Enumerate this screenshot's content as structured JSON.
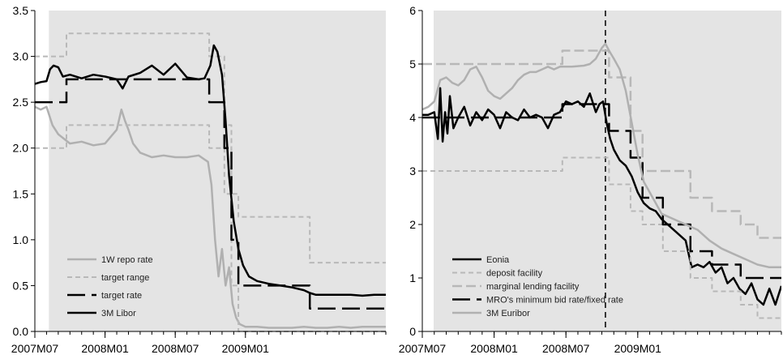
{
  "chart_data": [
    {
      "type": "line",
      "title": "",
      "xlabel": "",
      "ylabel": "",
      "xlim": [
        0,
        30
      ],
      "ylim": [
        0,
        3.5
      ],
      "x_ticks": [
        {
          "label": "2007M07",
          "x": 0
        },
        {
          "label": "2008M01",
          "x": 6
        },
        {
          "label": "2008M07",
          "x": 12
        },
        {
          "label": "2009M01",
          "x": 18
        }
      ],
      "y_ticks": [
        "0.0",
        "0.5",
        "1.0",
        "1.5",
        "2.0",
        "2.5",
        "3.0",
        "3.5"
      ],
      "y_tick_values": [
        0,
        0.5,
        1.0,
        1.5,
        2.0,
        2.5,
        3.0,
        3.5
      ],
      "shaded_region": {
        "x_start": 1.2,
        "x_end": 30,
        "color": "#e4e4e4"
      },
      "legend": {
        "placement": "bottom-left"
      },
      "series": [
        {
          "name": "1W repo rate",
          "color": "#b0b0b0",
          "dash": "solid",
          "width": 2.5,
          "x": [
            0,
            0.5,
            1,
            1.5,
            2,
            2.5,
            3,
            4,
            5,
            6,
            7,
            7.4,
            7.7,
            8,
            8.4,
            9,
            10,
            11,
            12,
            13,
            14,
            14.8,
            15.1,
            15.4,
            15.7,
            16,
            16.3,
            16.6,
            16.9,
            17.2,
            17.5,
            18,
            19,
            20,
            21,
            22,
            23,
            24,
            25,
            26,
            27,
            28,
            29,
            30
          ],
          "y": [
            2.45,
            2.42,
            2.45,
            2.25,
            2.15,
            2.1,
            2.05,
            2.07,
            2.03,
            2.05,
            2.2,
            2.42,
            2.3,
            2.2,
            2.05,
            1.95,
            1.9,
            1.92,
            1.9,
            1.9,
            1.92,
            1.85,
            1.6,
            1.0,
            0.6,
            0.9,
            0.5,
            0.7,
            0.3,
            0.15,
            0.08,
            0.05,
            0.05,
            0.04,
            0.04,
            0.04,
            0.05,
            0.04,
            0.04,
            0.05,
            0.04,
            0.05,
            0.05,
            0.05
          ]
        },
        {
          "name": "target range",
          "color": "#b8b8b8",
          "dash": "short",
          "width": 2,
          "steps": true,
          "x": [
            0,
            2.7,
            14.9,
            16.2,
            16.8,
            17.4,
            23.5,
            26.8,
            30
          ],
          "y": [
            3.0,
            3.25,
            3.0,
            2.25,
            1.5,
            1.25,
            0.75,
            0.75,
            0.75
          ]
        },
        {
          "name": "",
          "color": "#b8b8b8",
          "dash": "short",
          "width": 2,
          "steps": true,
          "x": [
            0,
            2.7,
            14.9,
            16.2,
            16.8,
            17.4,
            30
          ],
          "y": [
            2.0,
            2.25,
            2.0,
            1.5,
            0.5,
            0.0,
            0.0
          ]
        },
        {
          "name": "target rate",
          "color": "#000000",
          "dash": "long",
          "width": 2.5,
          "steps": true,
          "x": [
            0,
            1.2,
            2.7,
            14.9,
            16.2,
            16.8,
            17.4,
            23.5,
            30
          ],
          "y": [
            2.5,
            2.5,
            2.75,
            2.5,
            2.0,
            1.0,
            0.5,
            0.25,
            0.25
          ]
        },
        {
          "name": "3M Libor",
          "color": "#000000",
          "dash": "solid",
          "width": 2.5,
          "x": [
            0,
            0.5,
            1,
            1.3,
            1.6,
            2,
            2.4,
            3,
            4,
            5,
            6,
            7,
            7.5,
            8,
            9,
            10,
            10.5,
            11,
            12,
            13,
            14,
            14.5,
            15,
            15.3,
            15.6,
            16,
            16.3,
            16.6,
            17,
            17.4,
            17.8,
            18.3,
            19,
            20,
            21,
            22,
            23,
            23.5,
            24,
            25,
            26,
            27,
            28,
            29,
            30
          ],
          "y": [
            2.7,
            2.72,
            2.73,
            2.86,
            2.9,
            2.88,
            2.78,
            2.8,
            2.76,
            2.8,
            2.78,
            2.75,
            2.65,
            2.78,
            2.82,
            2.9,
            2.85,
            2.8,
            2.92,
            2.77,
            2.75,
            2.76,
            2.9,
            3.12,
            3.05,
            2.8,
            2.3,
            1.7,
            1.2,
            0.9,
            0.72,
            0.6,
            0.55,
            0.52,
            0.5,
            0.48,
            0.45,
            0.42,
            0.4,
            0.4,
            0.4,
            0.4,
            0.39,
            0.4,
            0.4
          ]
        }
      ]
    },
    {
      "type": "line",
      "title": "",
      "xlabel": "",
      "ylabel": "",
      "xlim": [
        0,
        30
      ],
      "ylim": [
        0,
        6
      ],
      "x_ticks": [
        {
          "label": "2007M07",
          "x": 0
        },
        {
          "label": "2008M01",
          "x": 6
        },
        {
          "label": "2008M07",
          "x": 12
        },
        {
          "label": "2009M01",
          "x": 18
        }
      ],
      "y_ticks": [
        "0",
        "1",
        "2",
        "3",
        "4",
        "5",
        "6"
      ],
      "y_tick_values": [
        0,
        1,
        2,
        3,
        4,
        5,
        6
      ],
      "shaded_region": {
        "x_start": 0.95,
        "x_end": 30,
        "color": "#e4e4e4"
      },
      "vertical_marker": {
        "x": 15.3,
        "color": "#000000",
        "dash": "long"
      },
      "legend": {
        "placement": "bottom-left"
      },
      "series": [
        {
          "name": "Eonia",
          "color": "#000000",
          "dash": "solid",
          "width": 2.5,
          "x": [
            0,
            0.5,
            1,
            1.3,
            1.5,
            1.7,
            1.9,
            2.1,
            2.3,
            2.6,
            3,
            3.5,
            4,
            4.5,
            5,
            5.5,
            6,
            6.5,
            7,
            7.5,
            8,
            8.5,
            9,
            9.5,
            10,
            10.5,
            11,
            11.5,
            12,
            12.5,
            13,
            13.5,
            14,
            14.5,
            14.8,
            15.1,
            15.4,
            15.7,
            16,
            16.5,
            17,
            17.5,
            18,
            18.5,
            19,
            19.5,
            20,
            20.5,
            21,
            21.5,
            22,
            22.5,
            23,
            23.5,
            24,
            24.5,
            25,
            25.5,
            26,
            26.5,
            27,
            27.5,
            28,
            28.5,
            29,
            29.5,
            30
          ],
          "y": [
            4.05,
            4.05,
            4.1,
            3.6,
            4.55,
            3.55,
            4.1,
            3.7,
            4.4,
            3.8,
            4.0,
            4.2,
            3.85,
            4.1,
            3.95,
            4.15,
            4.05,
            3.8,
            4.1,
            4.0,
            3.95,
            4.15,
            4.0,
            4.05,
            4.0,
            3.8,
            4.05,
            4.1,
            4.3,
            4.25,
            4.3,
            4.2,
            4.45,
            4.1,
            4.25,
            4.3,
            3.9,
            3.6,
            3.4,
            3.2,
            3.1,
            2.9,
            2.6,
            2.4,
            2.3,
            2.25,
            2.1,
            2.0,
            1.9,
            1.8,
            1.7,
            1.2,
            1.25,
            1.2,
            1.3,
            1.1,
            1.2,
            0.9,
            1.0,
            0.8,
            0.7,
            0.9,
            0.6,
            0.5,
            0.8,
            0.5,
            0.85
          ]
        },
        {
          "name": "deposit facility",
          "color": "#b8b8b8",
          "dash": "short",
          "width": 2,
          "steps": true,
          "x": [
            0,
            11.7,
            15.6,
            17.4,
            18.4,
            20.1,
            22.4,
            24.2,
            26.6,
            28,
            30
          ],
          "y": [
            3.0,
            3.25,
            2.75,
            2.25,
            2.0,
            1.5,
            1.0,
            0.75,
            0.5,
            0.25,
            0.25
          ]
        },
        {
          "name": "marginal lending facility",
          "color": "#b8b8b8",
          "dash": "medium",
          "width": 2.5,
          "steps": true,
          "x": [
            0,
            11.7,
            15.6,
            17.4,
            18.4,
            20.1,
            22.4,
            24.2,
            26.6,
            28,
            30
          ],
          "y": [
            5.0,
            5.25,
            4.75,
            3.75,
            3.0,
            3.0,
            2.5,
            2.25,
            2.0,
            1.75,
            1.75
          ]
        },
        {
          "name": "MRO's minimum bid rate/fixed rate",
          "color": "#000000",
          "dash": "long",
          "width": 2.5,
          "steps": true,
          "x": [
            0,
            11.7,
            15.6,
            16.3,
            17.4,
            18.4,
            20.1,
            22.4,
            24.2,
            26.6,
            28,
            30
          ],
          "y": [
            4.0,
            4.25,
            3.75,
            3.75,
            3.25,
            2.5,
            2.0,
            1.5,
            1.25,
            1.0,
            1.0,
            1.0
          ]
        },
        {
          "name": "3M Euribor",
          "color": "#b0b0b0",
          "dash": "solid",
          "width": 2.5,
          "x": [
            0,
            0.5,
            1,
            1.5,
            2,
            2.5,
            3,
            3.5,
            4,
            4.5,
            5,
            5.5,
            6,
            6.5,
            7,
            7.5,
            8,
            8.5,
            9,
            9.5,
            10,
            10.5,
            11,
            11.5,
            12,
            12.5,
            13,
            13.5,
            14,
            14.5,
            15,
            15.3,
            15.6,
            16,
            16.5,
            17,
            17.5,
            18,
            18.5,
            19,
            20,
            21,
            22,
            23,
            24,
            25,
            26,
            27,
            28,
            29,
            30
          ],
          "y": [
            4.15,
            4.2,
            4.3,
            4.7,
            4.75,
            4.65,
            4.6,
            4.7,
            4.9,
            4.95,
            4.75,
            4.5,
            4.4,
            4.35,
            4.45,
            4.55,
            4.7,
            4.8,
            4.85,
            4.85,
            4.9,
            4.95,
            4.9,
            4.95,
            4.95,
            4.95,
            4.96,
            4.97,
            5.0,
            5.1,
            5.3,
            5.38,
            5.25,
            5.1,
            4.9,
            4.5,
            3.9,
            3.3,
            2.8,
            2.6,
            2.2,
            2.1,
            2.0,
            1.9,
            1.7,
            1.55,
            1.45,
            1.35,
            1.25,
            1.2,
            1.2
          ]
        }
      ]
    }
  ]
}
